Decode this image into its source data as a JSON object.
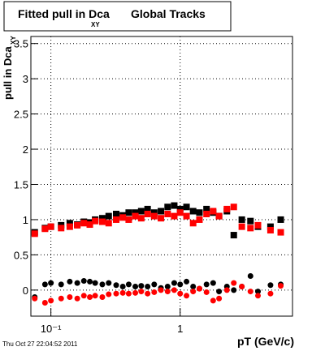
{
  "chart_data": {
    "type": "scatter",
    "title": {
      "text": "Fitted pull in Dca",
      "subscript": "XY",
      "suffix": "Global Tracks"
    },
    "y_label": {
      "text": "pull in Dca",
      "subscript": "XY"
    },
    "x_label": "pT (GeV/c)",
    "timestamp": "Thu Oct 27 22:04:52 2011",
    "x_log": true,
    "grid": true,
    "xlim": [
      0.07,
      7.4
    ],
    "xticks": [
      {
        "value": 0.1,
        "label": "10⁻¹"
      },
      1
    ],
    "ylim": [
      -0.37,
      3.6
    ],
    "yticks": [
      0,
      0.5,
      1,
      1.5,
      2,
      2.5,
      3,
      3.5
    ],
    "x": [
      0.075,
      0.09,
      0.1,
      0.12,
      0.14,
      0.16,
      0.18,
      0.2,
      0.22,
      0.25,
      0.28,
      0.32,
      0.36,
      0.4,
      0.45,
      0.5,
      0.56,
      0.63,
      0.71,
      0.8,
      0.9,
      1.0,
      1.12,
      1.26,
      1.41,
      1.6,
      1.8,
      2.0,
      2.3,
      2.6,
      3.0,
      3.5,
      4.0,
      5.0,
      6.0
    ],
    "series": [
      {
        "color": "#000000",
        "marker": "square",
        "values": [
          0.82,
          0.88,
          0.9,
          0.92,
          0.95,
          0.93,
          0.97,
          0.96,
          1.0,
          1.02,
          1.05,
          1.08,
          1.06,
          1.1,
          1.1,
          1.12,
          1.15,
          1.1,
          1.12,
          1.18,
          1.2,
          1.15,
          1.18,
          1.12,
          1.1,
          1.15,
          1.1,
          1.05,
          1.12,
          0.78,
          1.0,
          0.98,
          0.9,
          0.9,
          1.0
        ]
      },
      {
        "color": "#ff0000",
        "marker": "square",
        "values": [
          0.8,
          0.87,
          0.9,
          0.88,
          0.9,
          0.92,
          0.95,
          0.93,
          0.98,
          0.97,
          0.95,
          1.0,
          1.03,
          1.0,
          1.05,
          1.02,
          1.08,
          1.05,
          1.02,
          1.08,
          1.05,
          1.1,
          1.05,
          0.95,
          1.0,
          1.08,
          1.12,
          1.05,
          1.15,
          1.18,
          0.9,
          0.88,
          0.92,
          0.85,
          0.82
        ]
      },
      {
        "color": "#000000",
        "marker": "circle",
        "values": [
          -0.1,
          0.08,
          0.1,
          0.08,
          0.12,
          0.1,
          0.13,
          0.12,
          0.1,
          0.08,
          0.1,
          0.07,
          0.05,
          0.08,
          0.05,
          0.06,
          0.05,
          0.08,
          0.03,
          0.05,
          0.1,
          0.08,
          0.12,
          0.05,
          0.02,
          0.08,
          0.1,
          -0.02,
          0.05,
          0.0,
          0.05,
          0.2,
          -0.02,
          0.07,
          0.08
        ]
      },
      {
        "color": "#ff0000",
        "marker": "circle",
        "values": [
          -0.12,
          -0.18,
          -0.15,
          -0.12,
          -0.1,
          -0.12,
          -0.08,
          -0.1,
          -0.08,
          -0.1,
          -0.06,
          -0.05,
          -0.04,
          -0.05,
          -0.04,
          -0.02,
          -0.05,
          -0.03,
          0.0,
          -0.02,
          0.0,
          -0.05,
          -0.08,
          -0.02,
          0.02,
          -0.03,
          -0.15,
          -0.12,
          0.0,
          0.1,
          0.05,
          -0.02,
          -0.08,
          -0.05,
          0.06
        ]
      }
    ]
  }
}
